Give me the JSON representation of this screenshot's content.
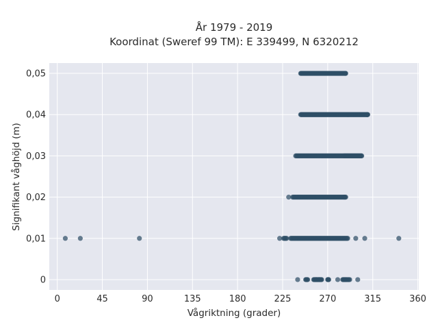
{
  "chart_data": {
    "type": "scatter",
    "title_line1": "År 1979 - 2019",
    "title_line2": "Koordinat (Sweref 99 TM): E 339499, N 6320212",
    "xlabel": "Vågriktning (grader)",
    "ylabel": "Signifikant våghöjd (m)",
    "xlim": [
      -8,
      361
    ],
    "ylim": [
      -0.0025,
      0.0525
    ],
    "x_ticks": [
      0,
      45,
      90,
      135,
      180,
      225,
      270,
      315,
      360
    ],
    "x_tick_labels": [
      "0",
      "45",
      "90",
      "135",
      "180",
      "225",
      "270",
      "315",
      "360"
    ],
    "y_ticks": [
      0,
      0.01,
      0.02,
      0.03,
      0.04,
      0.05
    ],
    "y_tick_labels": [
      "0",
      "0,01",
      "0,02",
      "0,03",
      "0,04",
      "0,05"
    ],
    "grid": true,
    "colors": {
      "background": "#e5e7ef",
      "grid": "#ffffff",
      "marker": "#2f4f66"
    },
    "points": [
      {
        "y": 0.05,
        "x": [
          243,
          245,
          247,
          249,
          251,
          253,
          255,
          257,
          259,
          261,
          263,
          265,
          267,
          269,
          271,
          273,
          275,
          277,
          279,
          281,
          283,
          285,
          287,
          288
        ]
      },
      {
        "y": 0.04,
        "x": [
          243,
          245,
          247,
          249,
          251,
          253,
          255,
          257,
          259,
          261,
          263,
          265,
          267,
          269,
          271,
          273,
          275,
          277,
          279,
          281,
          283,
          285,
          287,
          289,
          291,
          293,
          295,
          297,
          299,
          301,
          303,
          305,
          307,
          309,
          310
        ]
      },
      {
        "y": 0.03,
        "x": [
          238,
          241,
          244,
          247,
          250,
          253,
          256,
          259,
          262,
          265,
          268,
          271,
          274,
          277,
          280,
          283,
          286,
          288,
          290,
          292,
          294,
          296,
          298,
          300,
          302,
          304
        ]
      },
      {
        "y": 0.02,
        "x": [
          231,
          235,
          238,
          241,
          244,
          247,
          250,
          253,
          256,
          259,
          262,
          265,
          268,
          271,
          274,
          277,
          280,
          283,
          286,
          288
        ]
      },
      {
        "y": 0.01,
        "x": [
          8,
          23,
          82,
          222,
          226,
          229,
          233,
          236,
          239,
          242,
          245,
          248,
          251,
          254,
          257,
          260,
          263,
          266,
          269,
          272,
          275,
          278,
          281,
          284,
          287,
          290,
          298,
          307,
          341
        ]
      },
      {
        "y": 0.0,
        "x": [
          240,
          248,
          250,
          256,
          258,
          259,
          261,
          262,
          264,
          270,
          271,
          280,
          285,
          287,
          289,
          292,
          300
        ]
      }
    ]
  }
}
